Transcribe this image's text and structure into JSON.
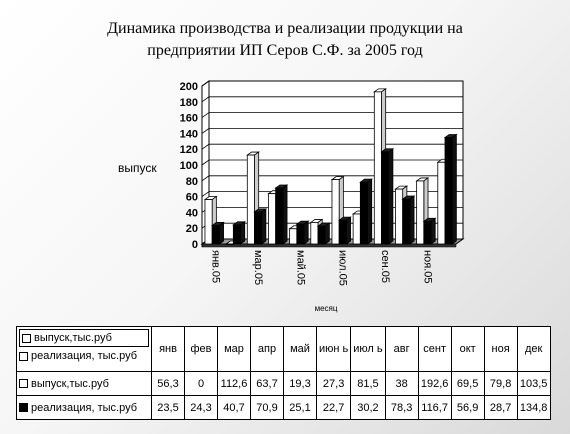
{
  "title": {
    "line1": "Динамика производства и реализации продукции  на",
    "line2": "предприятии ИП Серов С.Ф. за 2005 год"
  },
  "chart_data": {
    "type": "bar",
    "style": "3d-clustered",
    "ylabel": "выпуск",
    "xlabel": "месяц",
    "ylim": [
      0,
      200
    ],
    "yticks": [
      0,
      20,
      40,
      60,
      80,
      100,
      120,
      140,
      160,
      180,
      200
    ],
    "grid": true,
    "x_tick_labels": [
      "янв.05",
      "мар.05",
      "май.05",
      "июл.05",
      "сен.05",
      "ноя.05"
    ],
    "categories": [
      "янв",
      "фев",
      "мар",
      "апр",
      "май",
      "июнь",
      "июль",
      "авг",
      "сент",
      "окт",
      "ноя",
      "дек"
    ],
    "series": [
      {
        "name": "выпуск,тыс.руб",
        "color": "#ffffff",
        "values": [
          56.3,
          0,
          112.6,
          63.7,
          19.3,
          27.3,
          81.5,
          38,
          192.6,
          69.5,
          79.8,
          103.5
        ]
      },
      {
        "name": "реализация, тыс.руб",
        "color": "#000000",
        "values": [
          23.5,
          24.3,
          40.7,
          70.9,
          25.1,
          22.7,
          30.2,
          78.3,
          116.7,
          56.9,
          28.7,
          134.8
        ]
      }
    ]
  },
  "table": {
    "headers": [
      "янв",
      "фев",
      "мар",
      "апр",
      "май",
      "июн ь",
      "июл ь",
      "авг",
      "сент",
      "окт",
      "ноя",
      "дек"
    ],
    "legend": [
      "выпуск,тыс.руб",
      "реализация, тыс.руб"
    ],
    "rows": [
      {
        "label": "выпуск,тыс.руб",
        "cells": [
          "56,3",
          "0",
          "112,6",
          "63,7",
          "19,3",
          "27,3",
          "81,5",
          "38",
          "192,6",
          "69,5",
          "79,8",
          "103,5"
        ]
      },
      {
        "label": "реализация, тыс.руб",
        "cells": [
          "23,5",
          "24,3",
          "40,7",
          "70,9",
          "25,1",
          "22,7",
          "30,2",
          "78,3",
          "116,7",
          "56,9",
          "28,7",
          "134,8"
        ]
      }
    ]
  }
}
